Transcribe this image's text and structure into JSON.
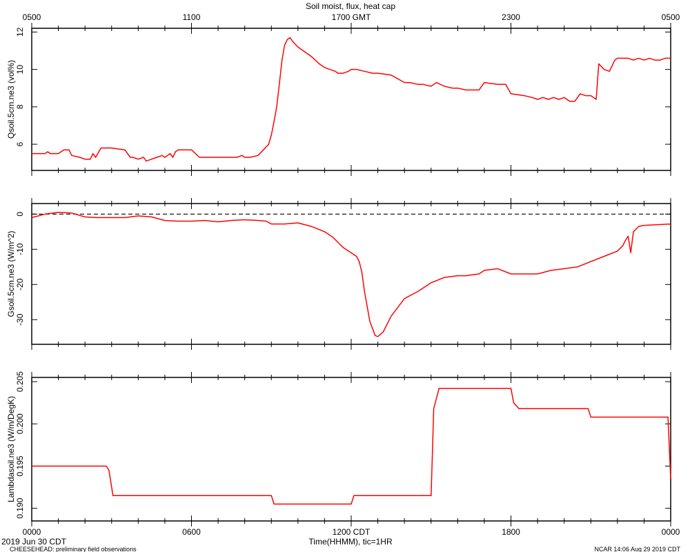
{
  "page": {
    "title": "Soil moist, flux, heat cap",
    "bottom_left_date": "2019 Jun 30 CDT",
    "footer_left": "CHEESEHEAD: preliminary field observations",
    "footer_right": "NCAR 14:06 Aug 29 2019 CDT",
    "xlabel": "Time(HHMM), tic=1HR"
  },
  "colors": {
    "series": "#ff0000",
    "axes": "#000000",
    "zero_line": "#000000"
  },
  "chart_data": [
    {
      "type": "line",
      "title": "Soil moist, flux, heat cap",
      "ylabel": "Qsoil.5cm.ne3 (vol%)",
      "xlim": [
        0,
        24
      ],
      "ylim": [
        4.6,
        12.2
      ],
      "yticks": [
        6,
        8,
        10,
        12
      ],
      "top_tick_labels": [
        "0500",
        "1100",
        "1700 GMT",
        "2300",
        "0500"
      ],
      "top_tick_positions": [
        0,
        6,
        12,
        18,
        24
      ],
      "grid": false,
      "series": [
        {
          "x": [
            0,
            0.5,
            0.6,
            0.7,
            1.0,
            1.2,
            1.4,
            1.5,
            1.8,
            2.0,
            2.2,
            2.3,
            2.4,
            2.6,
            3.0,
            3.5,
            3.7,
            3.8,
            4.0,
            4.2,
            4.3,
            4.5,
            4.7,
            4.9,
            5.0,
            5.2,
            5.3,
            5.4,
            5.5,
            5.7,
            6.0,
            6.3,
            6.5,
            7.0,
            7.5,
            7.6,
            7.7,
            7.9,
            8.0,
            8.2,
            8.5,
            8.7,
            8.9,
            9.0,
            9.1,
            9.2,
            9.3,
            9.4,
            9.5,
            9.6,
            9.7,
            9.8,
            10.0,
            10.5,
            10.8,
            11.0,
            11.2,
            11.4,
            11.5,
            11.7,
            11.9,
            12.0,
            12.2,
            12.5,
            12.8,
            13.0,
            13.5,
            14.0,
            14.2,
            14.5,
            14.7,
            15.0,
            15.1,
            15.2,
            15.5,
            15.8,
            16.0,
            16.3,
            16.5,
            16.8,
            17.0,
            17.5,
            17.8,
            18.0,
            18.5,
            18.8,
            19.0,
            19.2,
            19.4,
            19.6,
            19.8,
            20.0,
            20.2,
            20.4,
            20.6,
            20.8,
            21.0,
            21.2,
            21.3,
            21.5,
            21.7,
            21.9,
            22.0,
            22.2,
            22.4,
            22.6,
            22.8,
            23.0,
            23.2,
            23.4,
            23.6,
            23.8,
            24.0
          ],
          "y": [
            5.5,
            5.5,
            5.6,
            5.5,
            5.5,
            5.7,
            5.7,
            5.4,
            5.3,
            5.2,
            5.2,
            5.5,
            5.3,
            5.8,
            5.8,
            5.7,
            5.3,
            5.3,
            5.2,
            5.3,
            5.1,
            5.2,
            5.3,
            5.4,
            5.3,
            5.5,
            5.3,
            5.6,
            5.7,
            5.7,
            5.7,
            5.3,
            5.3,
            5.3,
            5.3,
            5.3,
            5.3,
            5.4,
            5.3,
            5.3,
            5.4,
            5.7,
            6.0,
            6.5,
            7.2,
            8.0,
            9.2,
            10.5,
            11.3,
            11.6,
            11.7,
            11.5,
            11.2,
            10.7,
            10.3,
            10.1,
            10.0,
            9.9,
            9.8,
            9.8,
            9.9,
            10.0,
            10.0,
            9.9,
            9.8,
            9.8,
            9.7,
            9.3,
            9.3,
            9.2,
            9.2,
            9.1,
            9.2,
            9.3,
            9.1,
            9.0,
            9.0,
            8.9,
            8.9,
            8.9,
            9.3,
            9.2,
            9.2,
            8.7,
            8.6,
            8.5,
            8.4,
            8.5,
            8.4,
            8.5,
            8.4,
            8.5,
            8.3,
            8.3,
            8.7,
            8.6,
            8.6,
            8.4,
            10.3,
            10.0,
            9.9,
            10.5,
            10.6,
            10.6,
            10.6,
            10.5,
            10.6,
            10.5,
            10.6,
            10.5,
            10.5,
            10.6,
            10.6
          ]
        }
      ]
    },
    {
      "type": "line",
      "ylabel": "Gsoil.5cm.ne3 (W/m^2)",
      "xlim": [
        0,
        24
      ],
      "ylim": [
        -37,
        3
      ],
      "yticks": [
        0,
        -10,
        -20,
        -30
      ],
      "zero_line": true,
      "grid": false,
      "series": [
        {
          "x": [
            0,
            0.5,
            1.0,
            1.5,
            2.0,
            2.5,
            3.0,
            3.5,
            4.0,
            4.5,
            5.0,
            5.5,
            6.0,
            6.5,
            7.0,
            7.5,
            8.0,
            8.5,
            8.8,
            9.0,
            9.5,
            10.0,
            10.5,
            11.0,
            11.3,
            11.5,
            11.7,
            11.9,
            12.0,
            12.1,
            12.2,
            12.3,
            12.4,
            12.5,
            12.7,
            12.9,
            13.0,
            13.2,
            13.5,
            14.0,
            14.5,
            15.0,
            15.5,
            16.0,
            16.3,
            16.5,
            16.8,
            17.0,
            17.5,
            18.0,
            18.5,
            19.0,
            19.5,
            20.0,
            20.5,
            21.0,
            21.5,
            22.0,
            22.2,
            22.3,
            22.4,
            22.5,
            22.6,
            22.8,
            23.0,
            23.5,
            24.0
          ],
          "y": [
            -1,
            0,
            0.5,
            0.3,
            -0.8,
            -1.0,
            -1.0,
            -1.0,
            -0.5,
            -0.8,
            -1.8,
            -2.0,
            -2.0,
            -1.8,
            -2.2,
            -1.8,
            -1.6,
            -1.8,
            -2.0,
            -2.8,
            -2.8,
            -2.5,
            -3.5,
            -5.0,
            -6.5,
            -8.0,
            -9.5,
            -10.5,
            -11.0,
            -11.5,
            -12.0,
            -13.5,
            -16.5,
            -22.0,
            -30.5,
            -34.5,
            -34.8,
            -33.5,
            -29.0,
            -24.0,
            -22.0,
            -19.5,
            -18.0,
            -17.5,
            -17.5,
            -17.3,
            -17.0,
            -16.0,
            -15.5,
            -17.0,
            -17.0,
            -17.0,
            -16.0,
            -15.5,
            -15.0,
            -13.5,
            -12.0,
            -10.5,
            -9.0,
            -7.5,
            -6.3,
            -11.0,
            -5.0,
            -3.5,
            -3.2,
            -3.0,
            -2.8
          ]
        }
      ]
    },
    {
      "type": "line",
      "ylabel": "Lambdasoil.ne3 (W/m/DegK)",
      "xlim": [
        0,
        24
      ],
      "ylim": [
        0.1885,
        0.2055
      ],
      "yticks": [
        0.19,
        0.195,
        0.2,
        0.205
      ],
      "ytick_labels": [
        "0.190",
        "0.195",
        "0.200",
        "0.205"
      ],
      "xtick_labels": [
        "0000",
        "0600",
        "1200 CDT",
        "1800",
        "0000"
      ],
      "xtick_positions": [
        0,
        6,
        12,
        18,
        24
      ],
      "grid": false,
      "series": [
        {
          "x": [
            0,
            2.8,
            2.9,
            3.0,
            3.05,
            8.8,
            9.0,
            9.1,
            9.2,
            11.9,
            12.0,
            12.1,
            12.3,
            14.9,
            15.0,
            15.1,
            15.3,
            17.9,
            18.0,
            18.1,
            18.3,
            20.8,
            20.9,
            21.0,
            21.2,
            23.9,
            24.0
          ],
          "y": [
            0.195,
            0.195,
            0.1945,
            0.1925,
            0.1915,
            0.1915,
            0.1915,
            0.1905,
            0.1905,
            0.1905,
            0.1905,
            0.1915,
            0.1915,
            0.1915,
            0.1915,
            0.2018,
            0.2042,
            0.2042,
            0.2042,
            0.2025,
            0.2018,
            0.2018,
            0.2018,
            0.2008,
            0.2008,
            0.2008,
            0.1935
          ]
        }
      ]
    }
  ]
}
